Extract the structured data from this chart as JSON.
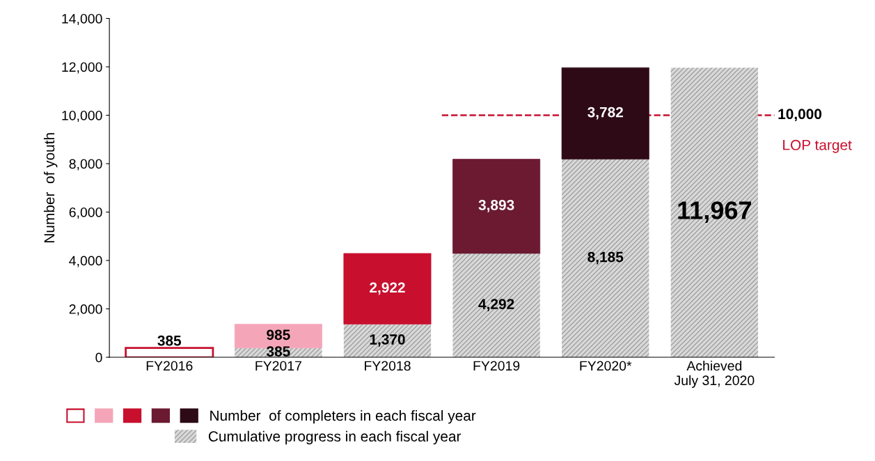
{
  "chart_data": {
    "type": "bar",
    "stacked": true,
    "ylabel": "Number  of youth",
    "categories": [
      "FY2016",
      "FY2017",
      "FY2018",
      "FY2019",
      "FY2020*",
      "Achieved\nJuly 31, 2020"
    ],
    "series": [
      {
        "name": "Cumulative progress in each fiscal year",
        "color": "#d9d9d9",
        "values": [
          null,
          385,
          1370,
          4292,
          8185,
          11967
        ],
        "value_labels": [
          null,
          "385",
          "1,370",
          "4,292",
          "8,185",
          "11,967"
        ]
      },
      {
        "name": "Number  of completers in each fiscal year",
        "colors": [
          "#ffffff",
          "#f4a6b8",
          "#c8102e",
          "#6b1a32",
          "#2d0a16",
          "#2d0a16"
        ],
        "values": [
          385,
          985,
          2922,
          3893,
          3782,
          null
        ],
        "value_labels": [
          "385",
          "985",
          "2,922",
          "3,893",
          "3,782",
          null
        ]
      }
    ],
    "ylim": [
      0,
      14000
    ],
    "yticks": [
      0,
      {
        "value": 2000,
        "label": "2,000"
      },
      {
        "value": 4000,
        "label": "4,000"
      },
      {
        "value": 6000,
        "label": "6,000"
      },
      {
        "value": 8000,
        "label": "8,000"
      },
      {
        "value": 10000,
        "label": "10,000"
      },
      {
        "value": 12000,
        "label": "12,000"
      },
      {
        "value": 14000,
        "label": "14,000"
      }
    ],
    "ref_lines": [
      {
        "axis": "y",
        "value": 10000,
        "label": "10,000",
        "color": "#c8102e",
        "line_style": "dashed"
      }
    ],
    "annotations": [
      "LOP target"
    ],
    "legend": "bottom",
    "grid": false
  }
}
